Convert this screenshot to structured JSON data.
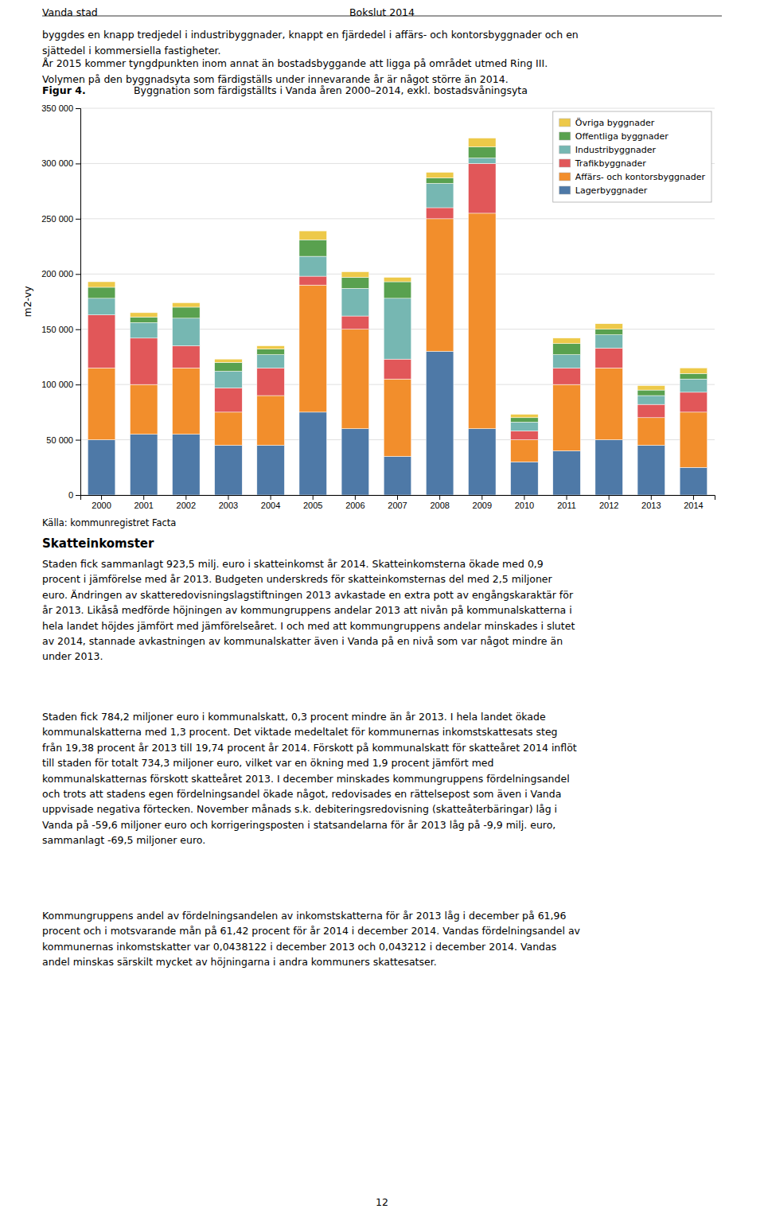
{
  "header_left": "Vanda stad",
  "header_center": "Bokslut 2014",
  "intro": [
    "byggdes en knapp tredjedel i industribyggnader, knappt en fjärdedel i affärs- och kontorsbyggnader och en\nsjättedel i kommersiella fastigheter.",
    "År 2015 kommer tyngdpunkten inom annat än bostadsbyggande att ligga på området utmed Ring III.\nVolymen på den byggnadsyta som färdigställs under innevarande år är något större än 2014."
  ],
  "figure_label": "Figur 4.",
  "chart_data": {
    "type": "bar",
    "stacked": true,
    "title": "Byggnation som färdigställts i Vanda åren 2000–2014, exkl. bostadsvåningsyta",
    "y_label": "m2-vy",
    "categories": [
      "2000",
      "2001",
      "2002",
      "2003",
      "2004",
      "2005",
      "2006",
      "2007",
      "2008",
      "2009",
      "2010",
      "2011",
      "2012",
      "2013",
      "2014"
    ],
    "series": [
      {
        "name": "Lagerbyggnader",
        "values": [
          50000,
          55000,
          55000,
          45000,
          45000,
          75000,
          60000,
          35000,
          130000,
          60000,
          30000,
          40000,
          50000,
          45000,
          25000
        ]
      },
      {
        "name": "Affärs- och kontorsbyggnader",
        "values": [
          65000,
          45000,
          60000,
          30000,
          45000,
          115000,
          90000,
          70000,
          120000,
          195000,
          20000,
          60000,
          65000,
          25000,
          50000
        ]
      },
      {
        "name": "Trafikbyggnader",
        "values": [
          48000,
          42000,
          20000,
          22000,
          25000,
          8000,
          12000,
          18000,
          10000,
          45000,
          8000,
          15000,
          18000,
          12000,
          18000
        ]
      },
      {
        "name": "Industribyggnader",
        "values": [
          15000,
          14000,
          25000,
          15000,
          12000,
          18000,
          25000,
          55000,
          22000,
          5000,
          8000,
          12000,
          12000,
          8000,
          12000
        ]
      },
      {
        "name": "Offentliga byggnader",
        "values": [
          10000,
          5000,
          10000,
          8000,
          5000,
          15000,
          10000,
          15000,
          5000,
          10000,
          4000,
          10000,
          5000,
          5000,
          5000
        ]
      },
      {
        "name": "Övriga byggnader",
        "values": [
          5000,
          4000,
          4000,
          3000,
          3000,
          8000,
          5000,
          4000,
          5000,
          8000,
          3000,
          5000,
          5000,
          4000,
          5000
        ]
      }
    ],
    "ylim": [
      0,
      350000
    ],
    "yticks": [
      0,
      {
        "value": 50000,
        "label": "50 000"
      },
      {
        "value": 100000,
        "label": "100 000"
      },
      {
        "value": 150000,
        "label": "150 000"
      },
      {
        "value": 200000,
        "label": "200 000"
      },
      {
        "value": 250000,
        "label": "250 000"
      },
      {
        "value": 300000,
        "label": "300 000"
      },
      {
        "value": 350000,
        "label": "350 000"
      }
    ],
    "grid": true,
    "legend": "upper right"
  },
  "source": "Källa: kommunregistret Facta",
  "section_title": "Skatteinkomster",
  "body": [
    "Staden fick sammanlagt 923,5 milj. euro i skatteinkomst år 2014. Skatteinkomsterna ökade med 0,9\nprocent i jämförelse med år 2013. Budgeten underskreds för skatteinkomsternas del med 2,5 miljoner\neuro. Ändringen av skatteredovisningslagstiftningen 2013 avkastade en extra pott av engångskaraktär för\når 2013. Likåså mеdförde höjningen av kommungruppens andelar 2013 att nivån på kommunalskatterna i\nhela landet höjdes jämfört med jämförelseåret. I och med att kommungruppens andelar minskades i slutet\nav 2014, stannade avkastningen av kommunalskatter även i Vanda på en nivå som var något mindre än\nunder 2013.",
    "Staden fick 784,2 miljoner euro i kommunalskatt, 0,3 procent mindre än år 2013. I hela landet ökade\nkommunalskatterna med 1,3 procent. Det viktade medeltalet för kommunernas inkomstskattesats steg\nfrån 19,38 procent år 2013 till 19,74 procent år 2014. Förskott på kommunalskatt för skatteåret 2014 inflöt\ntill staden för totalt 734,3 miljoner euro, vilket var en ökning med 1,9 procent jämfört med\nkommunalskatternas förskott skatteåret 2013. I december minskades kommungruppens fördelningsandel\noch trots att stadens egen fördelningsandel ökade något, redovisades en rättelsepost som även i Vanda\nuppvisade negativa förtecken. November månads s.k. debiteringsredovisning (skatteåterbäringar) låg i\nVanda på -59,6 miljoner euro och korrigeringsposten i statsandelarna för år 2013 låg på -9,9 milj. euro,\nsammanlagt -69,5 miljoner euro.",
    "Kommungruppens andel av fördelningsandelen av inkomstskatterna för år 2013 låg i december på 61,96\nprocent och i motsvarande mån på 61,42 procent för år 2014 i december 2014. Vandas fördelningsandel av\nkommunernas inkomstskatter var 0,0438122 i december 2013 och 0,043212 i december 2014. Vandas\nandel minskas särskilt mycket av höjningarna i andra kommuners skattesatser."
  ],
  "page_number": "12"
}
